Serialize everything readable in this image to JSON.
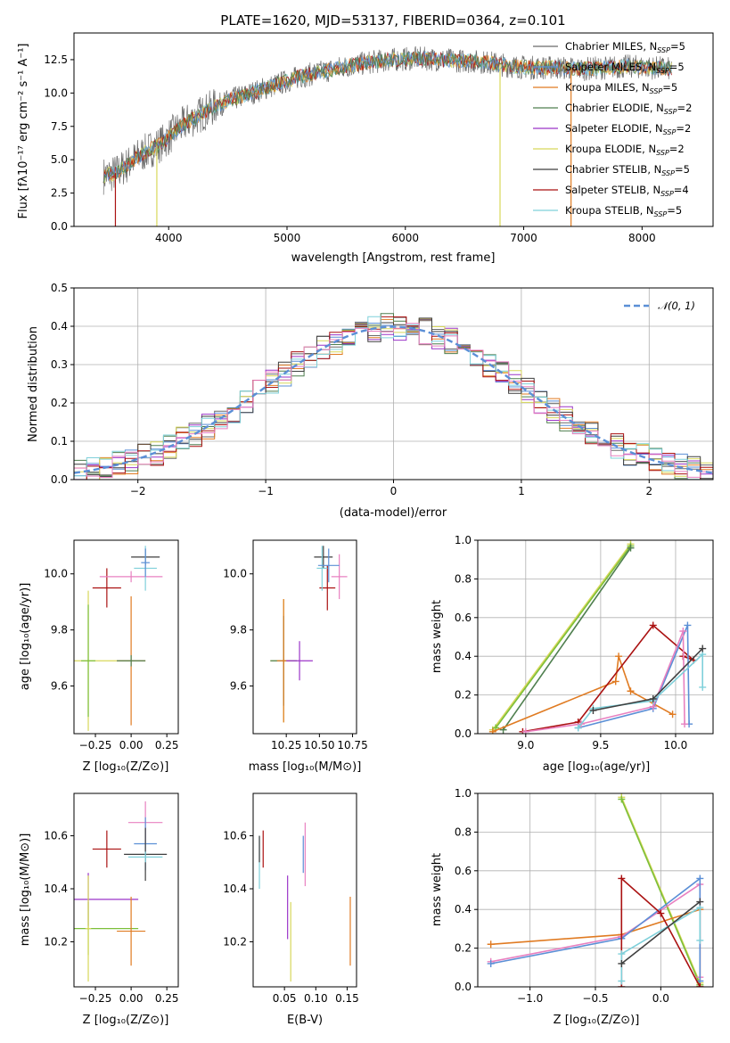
{
  "colors": {
    "chabrier_miles": "#6a6a6a",
    "salpeter_miles": "#5b8fd6",
    "kroupa_miles": "#e07b22",
    "chabrier_elodie": "#4f7f4f",
    "salpeter_elodie": "#9b35c8",
    "kroupa_elodie": "#d8d85a",
    "chabrier_stelib": "#3f3f3f",
    "salpeter_stelib": "#aa1111",
    "kroupa_stelib": "#7fd0da",
    "pink": "#e880c0",
    "green": "#7cbf3a",
    "normal": "#5b8fd6"
  },
  "chart_data": [
    {
      "id": "spectrum",
      "type": "line",
      "title": "PLATE=1620, MJD=53137, FIBERID=0364, z=0.101",
      "xlabel": "wavelength [Angstrom, rest frame]",
      "ylabel": "Flux [fλ10⁻¹⁷ erg cm⁻² s⁻¹ A⁻¹]",
      "xlim": [
        3200,
        8600
      ],
      "ylim": [
        0,
        14.5
      ],
      "xticks": [
        "4000",
        "5000",
        "6000",
        "7000",
        "8000"
      ],
      "yticks": [
        "0.0",
        "2.5",
        "5.0",
        "7.5",
        "10.0",
        "12.5"
      ],
      "legend_position": "right",
      "series": [
        {
          "name": "Chabrier MILES, N$_{SSP}$=5",
          "label": "Chabrier MILES, N",
          "sub": "SSP",
          "suffix": "=5"
        },
        {
          "name": "Salpeter MILES, N$_{SSP}$=5",
          "label": "Salpeter MILES, N",
          "sub": "SSP",
          "suffix": "=5"
        },
        {
          "name": "Kroupa MILES, N$_{SSP}$=5",
          "label": "Kroupa MILES, N",
          "sub": "SSP",
          "suffix": "=5"
        },
        {
          "name": "Chabrier ELODIE, N$_{SSP}$=2",
          "label": "Chabrier ELODIE, N",
          "sub": "SSP",
          "suffix": "=2"
        },
        {
          "name": "Salpeter ELODIE, N$_{SSP}$=2",
          "label": "Salpeter ELODIE, N",
          "sub": "SSP",
          "suffix": "=2"
        },
        {
          "name": "Kroupa ELODIE, N$_{SSP}$=2",
          "label": "Kroupa ELODIE, N",
          "sub": "SSP",
          "suffix": "=2"
        },
        {
          "name": "Chabrier STELIB, N$_{SSP}$=5",
          "label": "Chabrier STELIB, N",
          "sub": "SSP",
          "suffix": "=5"
        },
        {
          "name": "Salpeter STELIB, N$_{SSP}$=4",
          "label": "Salpeter STELIB, N",
          "sub": "SSP",
          "suffix": "=4"
        },
        {
          "name": "Kroupa STELIB, N$_{SSP}$=5",
          "label": "Kroupa STELIB, N",
          "sub": "SSP",
          "suffix": "=5"
        }
      ],
      "continuum": {
        "x": [
          3450,
          3550,
          3650,
          3750,
          3850,
          3950,
          4050,
          4150,
          4250,
          4350,
          4500,
          4700,
          4900,
          5100,
          5300,
          5500,
          5700,
          5900,
          6100,
          6300,
          6500,
          6700,
          6900,
          7100,
          7300,
          7500,
          7700,
          7900,
          8100,
          8250
        ],
        "y": [
          3.8,
          4.0,
          4.6,
          5.3,
          5.8,
          6.3,
          7.1,
          7.8,
          8.3,
          8.8,
          9.4,
          10.0,
          10.6,
          11.2,
          11.6,
          12.0,
          12.3,
          12.5,
          12.6,
          12.5,
          12.4,
          12.3,
          12.0,
          11.9,
          11.9,
          11.8,
          11.9,
          12.0,
          11.9,
          11.8
        ]
      },
      "drops": [
        {
          "x": 3550,
          "y": 0
        },
        {
          "x": 3900,
          "y": 0
        },
        {
          "x": 6800,
          "y": 0
        },
        {
          "x": 7400,
          "y": 0
        }
      ]
    },
    {
      "id": "residuals",
      "type": "line",
      "xlabel": "(data-model)/error",
      "ylabel": "Normed distribution",
      "xlim": [
        -2.5,
        2.5
      ],
      "ylim": [
        0,
        0.5
      ],
      "xticks": [
        "−2",
        "−1",
        "0",
        "1",
        "2"
      ],
      "yticks": [
        "0.0",
        "0.1",
        "0.2",
        "0.3",
        "0.4",
        "0.5"
      ],
      "legend": "𝒩(0, 1)",
      "legend_position": "top-right"
    },
    {
      "id": "age_vs_Z",
      "type": "scatter",
      "xlabel": "Z [log₁₀(Z/Z⊙)]",
      "ylabel": "age  [log₁₀(age/yr)]",
      "xlim": [
        -0.4,
        0.33
      ],
      "ylim": [
        9.43,
        10.12
      ],
      "xticks": [
        {
          "v": -0.25,
          "t": "−0.25"
        },
        {
          "v": 0,
          "t": "0.00"
        },
        {
          "v": 0.25,
          "t": "0.25"
        }
      ],
      "yticks": [
        {
          "v": 9.6,
          "t": "9.6"
        },
        {
          "v": 9.8,
          "t": "9.8"
        },
        {
          "v": 10.0,
          "t": "10.0"
        }
      ],
      "points": [
        {
          "c": "kroupa_elodie",
          "x": -0.3,
          "y": 9.69,
          "dx": 0.3,
          "dy": 0.25
        },
        {
          "c": "green",
          "x": -0.3,
          "y": 9.69,
          "dx": 0.05,
          "dy": 0.2
        },
        {
          "c": "kroupa_miles",
          "x": 0,
          "y": 9.69,
          "dx": 0.1,
          "dy": 0.23
        },
        {
          "c": "chabrier_elodie",
          "x": 0,
          "y": 9.69,
          "dx": 0.1,
          "dy": 0.02
        },
        {
          "c": "salpeter_stelib",
          "x": -0.17,
          "y": 9.95,
          "dx": 0.1,
          "dy": 0.07
        },
        {
          "c": "pink",
          "x": 0,
          "y": 9.99,
          "dx": 0.22,
          "dy": 0.02
        },
        {
          "c": "chabrier_stelib",
          "x": 0.1,
          "y": 10.06,
          "dx": 0.1,
          "dy": 0.03
        },
        {
          "c": "kroupa_stelib",
          "x": 0.1,
          "y": 10.02,
          "dx": 0.08,
          "dy": 0.08
        },
        {
          "c": "salpeter_miles",
          "x": 0.1,
          "y": 10.04,
          "dx": 0.03,
          "dy": 0.05
        }
      ]
    },
    {
      "id": "age_vs_mass",
      "type": "scatter",
      "xlabel": "mass [log₁₀(M/M⊙)]",
      "ylabel": "",
      "xlim": [
        10.0,
        10.78
      ],
      "ylim": [
        9.43,
        10.12
      ],
      "xticks": [
        {
          "v": 10.25,
          "t": "10.25"
        },
        {
          "v": 10.5,
          "t": "10.50"
        },
        {
          "v": 10.75,
          "t": "10.75"
        }
      ],
      "yticks": [
        {
          "v": 9.6,
          "t": "9.6"
        },
        {
          "v": 9.8,
          "t": "9.8"
        },
        {
          "v": 10.0,
          "t": "10.0"
        }
      ],
      "points": [
        {
          "c": "kroupa_elodie",
          "x": 10.23,
          "y": 9.69,
          "dx": 0.1,
          "dy": 0.22
        },
        {
          "c": "chabrier_elodie",
          "x": 10.23,
          "y": 9.69,
          "dx": 0.1,
          "dy": 0.16
        },
        {
          "c": "kroupa_miles",
          "x": 10.23,
          "y": 9.69,
          "dx": 0.05,
          "dy": 0.22
        },
        {
          "c": "salpeter_elodie",
          "x": 10.35,
          "y": 9.69,
          "dx": 0.1,
          "dy": 0.07
        },
        {
          "c": "salpeter_stelib",
          "x": 10.56,
          "y": 9.95,
          "dx": 0.06,
          "dy": 0.08
        },
        {
          "c": "pink",
          "x": 10.65,
          "y": 9.99,
          "dx": 0.06,
          "dy": 0.08
        },
        {
          "c": "chabrier_stelib",
          "x": 10.53,
          "y": 10.06,
          "dx": 0.07,
          "dy": 0.04
        },
        {
          "c": "kroupa_stelib",
          "x": 10.52,
          "y": 10.02,
          "dx": 0.04,
          "dy": 0.08
        },
        {
          "c": "salpeter_miles",
          "x": 10.57,
          "y": 10.03,
          "dx": 0.08,
          "dy": 0.06
        }
      ]
    },
    {
      "id": "weight_vs_age",
      "type": "line",
      "xlabel": "age  [log₁₀(age/yr)]",
      "ylabel": "mass weight",
      "xlim": [
        8.68,
        10.25
      ],
      "ylim": [
        0,
        1
      ],
      "xticks": [
        {
          "v": 9.0,
          "t": "9.0"
        },
        {
          "v": 9.5,
          "t": "9.5"
        },
        {
          "v": 10.0,
          "t": "10.0"
        }
      ],
      "yticks": [
        {
          "v": 0,
          "t": "0.0"
        },
        {
          "v": 0.2,
          "t": "0.2"
        },
        {
          "v": 0.4,
          "t": "0.4"
        },
        {
          "v": 0.6,
          "t": "0.6"
        },
        {
          "v": 0.8,
          "t": "0.8"
        },
        {
          "v": 1.0,
          "t": "1.0"
        }
      ],
      "series": [
        {
          "c": "kroupa_elodie",
          "x": [
            8.78,
            9.7
          ],
          "y": [
            0.02,
            0.98
          ]
        },
        {
          "c": "green",
          "x": [
            8.8,
            9.7
          ],
          "y": [
            0.03,
            0.97
          ]
        },
        {
          "c": "chabrier_elodie",
          "x": [
            8.85,
            9.7
          ],
          "y": [
            0.02,
            0.96
          ]
        },
        {
          "c": "kroupa_miles",
          "x": [
            8.78,
            9.6,
            9.62,
            9.7,
            9.98
          ],
          "y": [
            0.01,
            0.27,
            0.4,
            0.22,
            0.1
          ]
        },
        {
          "c": "salpeter_stelib",
          "x": [
            8.98,
            9.35,
            9.85,
            10.12,
            10.05
          ],
          "y": [
            0.01,
            0.06,
            0.56,
            0.38,
            0.4
          ]
        },
        {
          "c": "salpeter_miles",
          "x": [
            9.35,
            9.85,
            10.08,
            10.09
          ],
          "y": [
            0.03,
            0.13,
            0.56,
            0.05
          ]
        },
        {
          "c": "pink",
          "x": [
            9.0,
            9.37,
            9.85,
            10.05,
            10.06
          ],
          "y": [
            0.01,
            0.05,
            0.14,
            0.53,
            0.05
          ]
        },
        {
          "c": "kroupa_stelib",
          "x": [
            9.35,
            9.45,
            9.85,
            10.18,
            10.18
          ],
          "y": [
            0.03,
            0.13,
            0.17,
            0.41,
            0.24
          ]
        },
        {
          "c": "chabrier_stelib",
          "x": [
            9.45,
            9.85,
            10.18
          ],
          "y": [
            0.12,
            0.18,
            0.44
          ]
        }
      ]
    },
    {
      "id": "mass_vs_Z",
      "type": "scatter",
      "xlabel": "Z [log₁₀(Z/Z⊙)]",
      "ylabel": "mass [log₁₀(M/M⊙)]",
      "xlim": [
        -0.4,
        0.33
      ],
      "ylim": [
        10.03,
        10.76
      ],
      "xticks": [
        {
          "v": -0.25,
          "t": "−0.25"
        },
        {
          "v": 0,
          "t": "0.00"
        },
        {
          "v": 0.25,
          "t": "0.25"
        }
      ],
      "yticks": [
        {
          "v": 10.2,
          "t": "10.2"
        },
        {
          "v": 10.4,
          "t": "10.4"
        },
        {
          "v": 10.6,
          "t": "10.6"
        }
      ],
      "points": [
        {
          "c": "salpeter_elodie",
          "x": -0.3,
          "y": 10.36,
          "dx": 0.35,
          "dy": 0.1
        },
        {
          "c": "green",
          "x": -0.3,
          "y": 10.25,
          "dx": 0.35,
          "dy": 0.1
        },
        {
          "c": "kroupa_elodie",
          "x": -0.3,
          "y": 10.25,
          "dx": 0.02,
          "dy": 0.2
        },
        {
          "c": "kroupa_miles",
          "x": 0,
          "y": 10.24,
          "dx": 0.1,
          "dy": 0.13
        },
        {
          "c": "salpeter_stelib",
          "x": -0.17,
          "y": 10.55,
          "dx": 0.1,
          "dy": 0.07
        },
        {
          "c": "pink",
          "x": 0.1,
          "y": 10.65,
          "dx": 0.12,
          "dy": 0.08
        },
        {
          "c": "salpeter_miles",
          "x": 0.1,
          "y": 10.57,
          "dx": 0.08,
          "dy": 0.1
        },
        {
          "c": "chabrier_stelib",
          "x": 0.1,
          "y": 10.53,
          "dx": 0.15,
          "dy": 0.1
        },
        {
          "c": "kroupa_stelib",
          "x": 0.1,
          "y": 10.52,
          "dx": 0.12,
          "dy": 0.02
        }
      ]
    },
    {
      "id": "mass_vs_ebv",
      "type": "scatter",
      "xlabel": "E(B-V)",
      "ylabel": "",
      "xlim": [
        0,
        0.165
      ],
      "ylim": [
        10.03,
        10.76
      ],
      "xticks": [
        {
          "v": 0.05,
          "t": "0.05"
        },
        {
          "v": 0.1,
          "t": "0.10"
        },
        {
          "v": 0.15,
          "t": "0.15"
        }
      ],
      "yticks": [
        {
          "v": 10.2,
          "t": "10.2"
        },
        {
          "v": 10.4,
          "t": "10.4"
        },
        {
          "v": 10.6,
          "t": "10.6"
        }
      ],
      "points": [
        {
          "c": "kroupa_stelib",
          "x": 0.01,
          "y": 10.5,
          "dx": 0,
          "dy": 0.1
        },
        {
          "c": "chabrier_stelib",
          "x": 0.01,
          "y": 10.55,
          "dx": 0,
          "dy": 0.05
        },
        {
          "c": "salpeter_stelib",
          "x": 0.016,
          "y": 10.55,
          "dx": 0,
          "dy": 0.07
        },
        {
          "c": "salpeter_elodie",
          "x": 0.055,
          "y": 10.33,
          "dx": 0,
          "dy": 0.12
        },
        {
          "c": "kroupa_elodie",
          "x": 0.06,
          "y": 10.2,
          "dx": 0,
          "dy": 0.15
        },
        {
          "c": "salpeter_miles",
          "x": 0.08,
          "y": 10.53,
          "dx": 0,
          "dy": 0.07
        },
        {
          "c": "pink",
          "x": 0.083,
          "y": 10.53,
          "dx": 0,
          "dy": 0.12
        },
        {
          "c": "kroupa_miles",
          "x": 0.155,
          "y": 10.24,
          "dx": 0,
          "dy": 0.13
        }
      ]
    },
    {
      "id": "weight_vs_Z",
      "type": "line",
      "xlabel": "Z [log₁₀(Z/Z⊙)]",
      "ylabel": "mass weight",
      "xlim": [
        -1.4,
        0.4
      ],
      "ylim": [
        0,
        1
      ],
      "xticks": [
        {
          "v": -1.0,
          "t": "−1.0"
        },
        {
          "v": -0.5,
          "t": "−0.5"
        },
        {
          "v": 0,
          "t": "0.0"
        }
      ],
      "yticks": [
        {
          "v": 0,
          "t": "0.0"
        },
        {
          "v": 0.2,
          "t": "0.2"
        },
        {
          "v": 0.4,
          "t": "0.4"
        },
        {
          "v": 0.6,
          "t": "0.6"
        },
        {
          "v": 0.8,
          "t": "0.8"
        },
        {
          "v": 1.0,
          "t": "1.0"
        }
      ],
      "series": [
        {
          "c": "kroupa_elodie",
          "x": [
            -0.3,
            0.3
          ],
          "y": [
            0.98,
            0.02
          ]
        },
        {
          "c": "green",
          "x": [
            -0.3,
            0.3
          ],
          "y": [
            0.97,
            0.01
          ]
        },
        {
          "c": "kroupa_miles",
          "x": [
            -1.3,
            -0.3,
            0.3,
            0.3
          ],
          "y": [
            0.22,
            0.27,
            0.4,
            0.0
          ]
        },
        {
          "c": "pink",
          "x": [
            -1.3,
            -0.3,
            0.3,
            0.3
          ],
          "y": [
            0.13,
            0.26,
            0.53,
            0.05
          ]
        },
        {
          "c": "salpeter_miles",
          "x": [
            -1.3,
            -0.3,
            0.3,
            0.3
          ],
          "y": [
            0.12,
            0.25,
            0.56,
            0.03
          ]
        },
        {
          "c": "salpeter_stelib",
          "x": [
            -0.3,
            -0.3,
            0.0,
            0.3
          ],
          "y": [
            0.0,
            0.56,
            0.38,
            0.0
          ]
        },
        {
          "c": "kroupa_stelib",
          "x": [
            -0.3,
            -0.3,
            0.3,
            0.3
          ],
          "y": [
            0.03,
            0.17,
            0.41,
            0.24
          ]
        },
        {
          "c": "chabrier_stelib",
          "x": [
            -0.3,
            0.3
          ],
          "y": [
            0.12,
            0.44
          ]
        }
      ]
    }
  ]
}
